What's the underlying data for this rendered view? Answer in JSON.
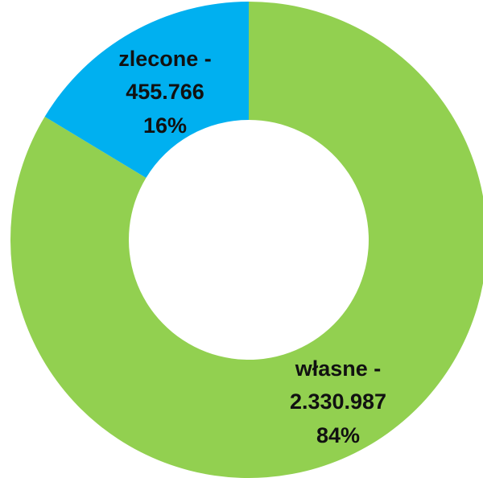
{
  "chart_data": {
    "type": "donut",
    "categories": [
      "własne -",
      "zlecone -"
    ],
    "values": [
      2330987,
      455766
    ],
    "value_labels": [
      "2.330.987",
      "455.766"
    ],
    "percentages": [
      84,
      16
    ],
    "percentage_labels": [
      "84%",
      "16%"
    ],
    "colors": [
      "#92d050",
      "#00b0f0"
    ]
  }
}
